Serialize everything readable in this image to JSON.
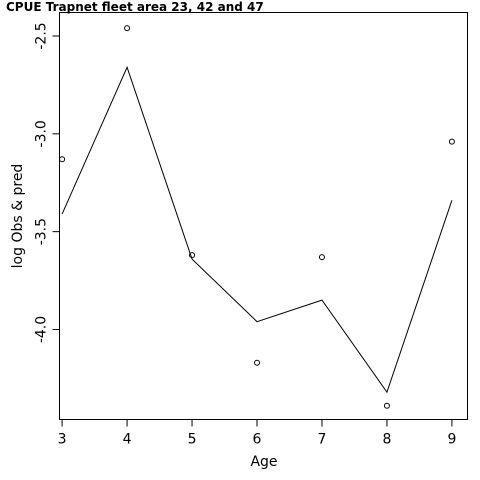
{
  "chart_data": {
    "type": "line",
    "title": "CPUE Trapnet fleet area 23, 42 and 47",
    "xlabel": "Age",
    "ylabel": "log Obs & pred",
    "x": [
      3,
      4,
      5,
      6,
      7,
      8,
      9
    ],
    "x_ticks": [
      "3",
      "4",
      "5",
      "6",
      "7",
      "8",
      "9"
    ],
    "y_ticks": [
      "-2.5",
      "-3.0",
      "-3.5",
      "-4.0"
    ],
    "xlim": [
      2.96,
      9.24
    ],
    "ylim": [
      -4.46,
      -2.38
    ],
    "grid": false,
    "series": [
      {
        "style": "points",
        "marker": "open-circle",
        "values": [
          -3.13,
          -2.46,
          -3.62,
          -4.17,
          -3.63,
          -4.39,
          -3.04
        ]
      },
      {
        "style": "line",
        "values": [
          -3.41,
          -2.66,
          -3.64,
          -3.96,
          -3.85,
          -4.32,
          -3.34
        ]
      }
    ]
  }
}
